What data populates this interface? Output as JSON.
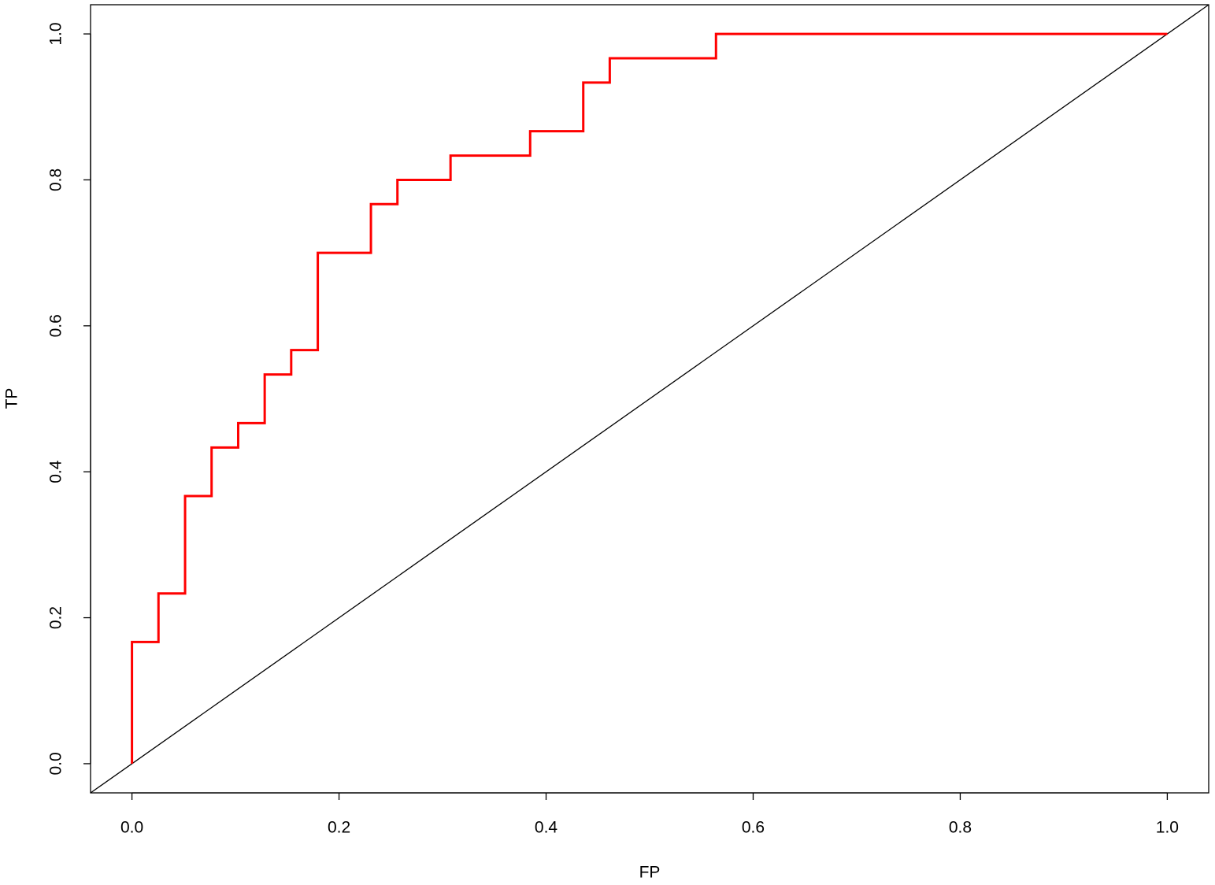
{
  "chart_data": {
    "type": "line",
    "xlabel": "FP",
    "ylabel": "TP",
    "xlim": [
      -0.04,
      1.04
    ],
    "ylim": [
      -0.04,
      1.04
    ],
    "xticks": [
      {
        "value": 0,
        "label": "0.0"
      },
      0.2,
      0.4,
      0.6,
      0.8,
      {
        "value": 1,
        "label": "1.0"
      }
    ],
    "yticks": [
      {
        "value": 0,
        "label": "0.0"
      },
      0.2,
      0.4,
      0.6,
      0.8,
      {
        "value": 1,
        "label": "1.0"
      }
    ],
    "diagonal": true,
    "series": [
      {
        "color": "#ff0000",
        "x": [
          0,
          0,
          0.0256,
          0.0256,
          0.0513,
          0.0513,
          0.0769,
          0.0769,
          0.1026,
          0.1026,
          0.1282,
          0.1282,
          0.1538,
          0.1538,
          0.1795,
          0.1795,
          0.2308,
          0.2308,
          0.2564,
          0.2564,
          0.3077,
          0.3077,
          0.3846,
          0.3846,
          0.4359,
          0.4359,
          0.4615,
          0.4615,
          0.5641,
          0.5641,
          1
        ],
        "values": [
          0,
          0.1667,
          0.1667,
          0.2333,
          0.2333,
          0.3667,
          0.3667,
          0.4333,
          0.4333,
          0.4667,
          0.4667,
          0.5333,
          0.5333,
          0.5667,
          0.5667,
          0.7,
          0.7,
          0.7667,
          0.7667,
          0.8,
          0.8,
          0.8333,
          0.8333,
          0.8667,
          0.8667,
          0.9333,
          0.9333,
          0.9667,
          0.9667,
          1,
          1
        ]
      }
    ]
  }
}
